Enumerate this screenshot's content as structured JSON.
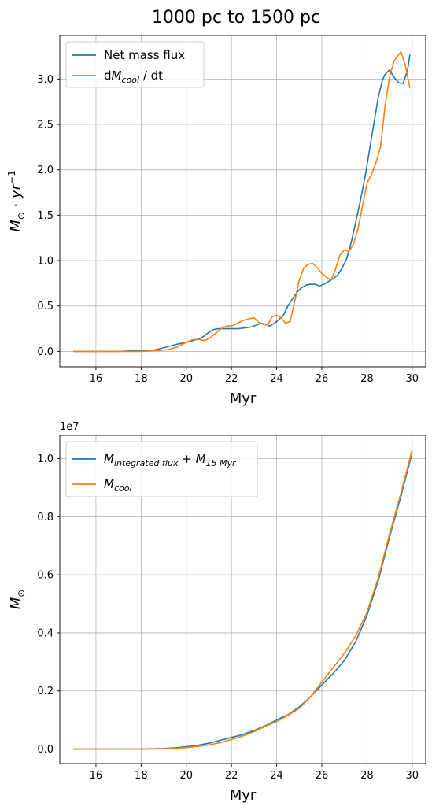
{
  "figure": {
    "title": "1000 pc to 1500 pc"
  },
  "colors": {
    "series1": "#1f77b4",
    "series2": "#ff7f0e",
    "grid": "#b0b0b0"
  },
  "chart_data": [
    {
      "type": "line",
      "xlabel": "Myr",
      "ylabel": "M_⊙ · yr⁻¹",
      "xlim": [
        14.4,
        30.6
      ],
      "ylim": [
        -0.17,
        3.48
      ],
      "xticks": [
        16,
        18,
        20,
        22,
        24,
        26,
        28,
        30
      ],
      "yticks": [
        0.0,
        0.5,
        1.0,
        1.5,
        2.0,
        2.5,
        3.0
      ],
      "ytick_labels": [
        "0.0",
        "0.5",
        "1.0",
        "1.5",
        "2.0",
        "2.5",
        "3.0"
      ],
      "grid": true,
      "legend_position": "upper-left",
      "series": [
        {
          "name": "Net mass flux",
          "color": "#1f77b4",
          "x": [
            15.0,
            16.0,
            17.0,
            18.0,
            18.5,
            19.0,
            19.3,
            19.6,
            20.0,
            20.3,
            20.6,
            20.8,
            21.0,
            21.2,
            21.4,
            21.6,
            21.8,
            22.0,
            22.3,
            22.6,
            22.9,
            23.1,
            23.3,
            23.5,
            23.7,
            23.9,
            24.1,
            24.3,
            24.5,
            24.7,
            24.9,
            25.1,
            25.3,
            25.5,
            25.7,
            25.9,
            26.1,
            26.3,
            26.5,
            26.7,
            26.9,
            27.1,
            27.3,
            27.5,
            27.7,
            27.9,
            28.1,
            28.3,
            28.5,
            28.7,
            28.8,
            29.0,
            29.2,
            29.4,
            29.6,
            29.8,
            29.9
          ],
          "y": [
            0.0,
            0.0,
            0.0,
            0.01,
            0.01,
            0.04,
            0.06,
            0.08,
            0.1,
            0.12,
            0.14,
            0.17,
            0.21,
            0.24,
            0.25,
            0.25,
            0.25,
            0.25,
            0.25,
            0.26,
            0.27,
            0.29,
            0.31,
            0.3,
            0.28,
            0.31,
            0.35,
            0.4,
            0.5,
            0.58,
            0.65,
            0.7,
            0.73,
            0.74,
            0.74,
            0.72,
            0.74,
            0.77,
            0.8,
            0.84,
            0.92,
            1.02,
            1.2,
            1.42,
            1.65,
            1.9,
            2.2,
            2.5,
            2.8,
            3.0,
            3.05,
            3.1,
            3.02,
            2.96,
            2.95,
            3.1,
            3.27
          ]
        },
        {
          "name": "dM_cool / dt",
          "color": "#ff7f0e",
          "x": [
            15.0,
            16.0,
            17.0,
            18.0,
            18.8,
            19.2,
            19.6,
            20.0,
            20.3,
            20.6,
            20.8,
            21.0,
            21.2,
            21.4,
            21.6,
            21.8,
            22.0,
            22.2,
            22.5,
            22.8,
            23.0,
            23.2,
            23.4,
            23.6,
            23.8,
            24.0,
            24.2,
            24.4,
            24.6,
            24.8,
            25.0,
            25.2,
            25.4,
            25.6,
            25.8,
            26.0,
            26.2,
            26.4,
            26.6,
            26.8,
            27.0,
            27.2,
            27.4,
            27.6,
            27.8,
            28.0,
            28.2,
            28.4,
            28.6,
            28.8,
            29.0,
            29.2,
            29.5,
            29.7,
            29.9
          ],
          "y": [
            0.0,
            0.0,
            0.0,
            0.0,
            0.01,
            0.02,
            0.05,
            0.1,
            0.13,
            0.13,
            0.12,
            0.14,
            0.18,
            0.22,
            0.26,
            0.28,
            0.28,
            0.3,
            0.34,
            0.36,
            0.37,
            0.32,
            0.3,
            0.29,
            0.38,
            0.4,
            0.37,
            0.31,
            0.33,
            0.55,
            0.78,
            0.92,
            0.96,
            0.97,
            0.92,
            0.86,
            0.82,
            0.78,
            0.9,
            1.06,
            1.12,
            1.1,
            1.18,
            1.35,
            1.6,
            1.85,
            1.95,
            2.08,
            2.25,
            2.7,
            3.02,
            3.2,
            3.3,
            3.15,
            2.9
          ]
        }
      ]
    },
    {
      "type": "line",
      "xlabel": "Myr",
      "ylabel": "M_⊙",
      "offset_text": "1e7",
      "xlim": [
        14.4,
        30.6
      ],
      "ylim": [
        -0.05,
        1.08
      ],
      "xticks": [
        16,
        18,
        20,
        22,
        24,
        26,
        28,
        30
      ],
      "yticks": [
        0.0,
        0.2,
        0.4,
        0.6,
        0.8,
        1.0
      ],
      "ytick_labels": [
        "0.0",
        "0.2",
        "0.4",
        "0.6",
        "0.8",
        "1.0"
      ],
      "grid": true,
      "legend_position": "upper-left",
      "series": [
        {
          "name": "M_integrated flux + M_15 Myr",
          "color": "#1f77b4",
          "x": [
            15.0,
            16.0,
            17.0,
            18.0,
            19.0,
            19.5,
            20.0,
            20.5,
            21.0,
            21.5,
            22.0,
            22.5,
            23.0,
            23.5,
            24.0,
            24.5,
            25.0,
            25.5,
            26.0,
            26.5,
            27.0,
            27.5,
            28.0,
            28.5,
            29.0,
            29.5,
            30.0
          ],
          "y": [
            0.0,
            0.0,
            0.0,
            0.0,
            0.002,
            0.004,
            0.008,
            0.013,
            0.02,
            0.03,
            0.04,
            0.05,
            0.064,
            0.08,
            0.1,
            0.118,
            0.145,
            0.18,
            0.22,
            0.26,
            0.305,
            0.37,
            0.46,
            0.58,
            0.73,
            0.87,
            1.02
          ]
        },
        {
          "name": "M_cool",
          "color": "#ff7f0e",
          "x": [
            15.0,
            16.0,
            17.0,
            18.0,
            19.0,
            19.5,
            20.0,
            20.5,
            21.0,
            21.5,
            22.0,
            22.5,
            23.0,
            23.5,
            24.0,
            24.5,
            25.0,
            25.5,
            26.0,
            26.5,
            27.0,
            27.5,
            28.0,
            28.5,
            29.0,
            29.5,
            30.0
          ],
          "y": [
            0.0,
            0.0,
            0.0,
            0.0,
            0.001,
            0.002,
            0.005,
            0.009,
            0.014,
            0.022,
            0.033,
            0.045,
            0.06,
            0.078,
            0.095,
            0.116,
            0.14,
            0.18,
            0.23,
            0.28,
            0.33,
            0.39,
            0.47,
            0.59,
            0.74,
            0.88,
            1.03
          ]
        }
      ]
    }
  ]
}
